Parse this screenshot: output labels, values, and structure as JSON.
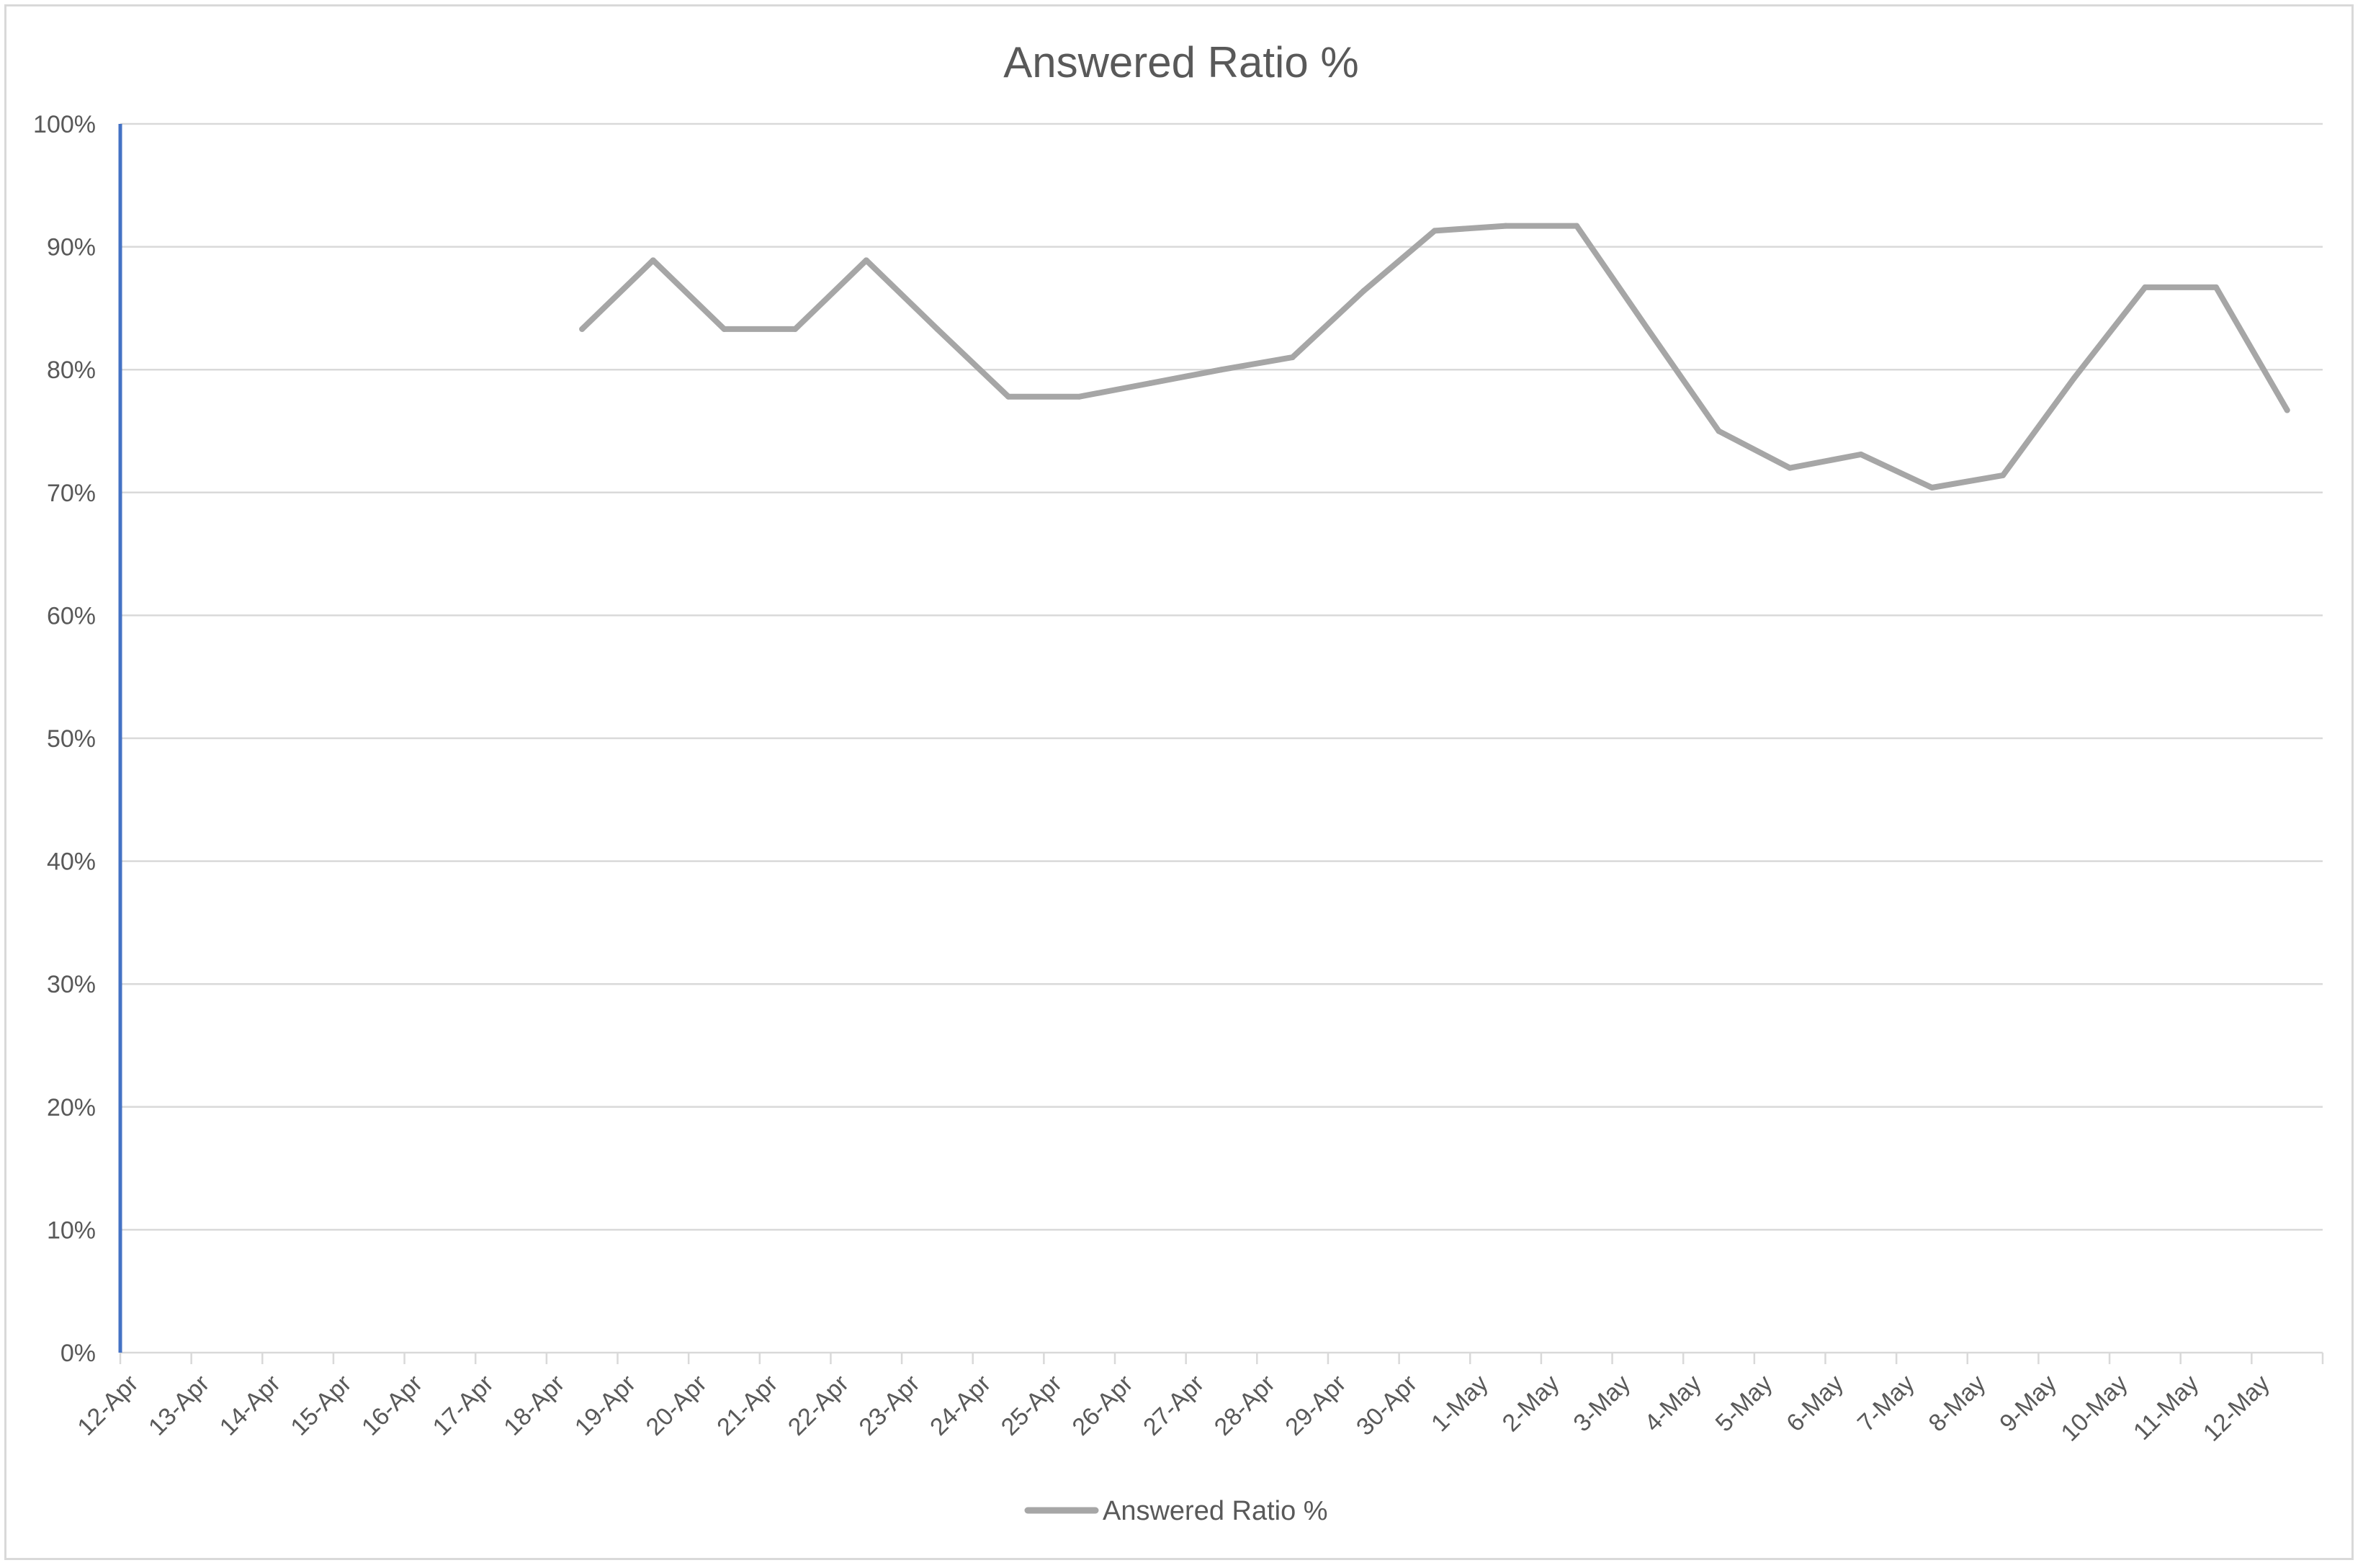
{
  "chart_data": {
    "type": "line",
    "title": "Answered Ratio %",
    "xlabel": "",
    "ylabel": "",
    "categories": [
      "12-Apr",
      "13-Apr",
      "14-Apr",
      "15-Apr",
      "16-Apr",
      "17-Apr",
      "18-Apr",
      "19-Apr",
      "20-Apr",
      "21-Apr",
      "22-Apr",
      "23-Apr",
      "24-Apr",
      "25-Apr",
      "26-Apr",
      "27-Apr",
      "28-Apr",
      "29-Apr",
      "30-Apr",
      "1-May",
      "2-May",
      "3-May",
      "4-May",
      "5-May",
      "6-May",
      "7-May",
      "8-May",
      "9-May",
      "10-May",
      "11-May",
      "12-May"
    ],
    "series": [
      {
        "name": "Answered Ratio %",
        "color": "#a6a6a6",
        "values": [
          null,
          null,
          null,
          null,
          null,
          null,
          83.3,
          88.9,
          83.3,
          83.3,
          88.9,
          83.3,
          77.8,
          77.8,
          78.9,
          80.0,
          81.0,
          86.4,
          91.3,
          91.7,
          91.7,
          83.3,
          75.0,
          72.0,
          73.1,
          70.4,
          71.4,
          79.3,
          86.7,
          86.7,
          76.7
        ]
      }
    ],
    "ylim": [
      0,
      100
    ],
    "yticks": [
      "0%",
      "10%",
      "20%",
      "30%",
      "40%",
      "50%",
      "60%",
      "70%",
      "80%",
      "90%",
      "100%"
    ],
    "grid": true,
    "legend_position": "bottom",
    "colors": {
      "axis_line": "#4472c4",
      "grid": "#d9d9d9",
      "text": "#595959"
    }
  }
}
